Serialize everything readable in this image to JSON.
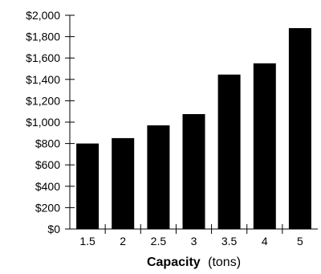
{
  "chart_data": {
    "type": "bar",
    "categories": [
      "1.5",
      "2",
      "2.5",
      "3",
      "3.5",
      "4",
      "5"
    ],
    "values": [
      800,
      850,
      970,
      1075,
      1445,
      1550,
      1880
    ],
    "xlabel_bold": "Capacity",
    "xlabel_unit": "(tons)",
    "ylabel": "",
    "ylim": [
      0,
      2000
    ],
    "yticks": [
      0,
      200,
      400,
      600,
      800,
      1000,
      1200,
      1400,
      1600,
      1800,
      2000
    ],
    "ytick_labels": [
      "$0",
      "$200",
      "$400",
      "$600",
      "$800",
      "$1,000",
      "$1,200",
      "$1,400",
      "$1,600",
      "$1,800",
      "$2,000"
    ],
    "bar_color": "#000000",
    "grid": false,
    "legend": "none"
  }
}
